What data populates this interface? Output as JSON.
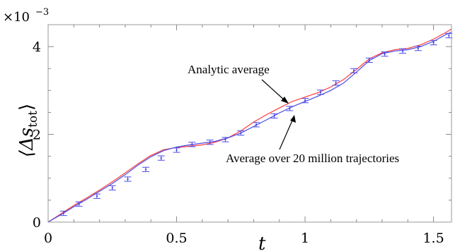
{
  "chart_data": {
    "type": "line",
    "xlabel": "t",
    "ylabel": "⟨Δs_tot⟩",
    "ylabel_main": "⟨Δs",
    "ylabel_sub": "tot",
    "ylabel_close": "⟩",
    "y_scale_multiplier": "×10",
    "y_scale_exponent": "−3",
    "xlim": [
      0,
      1.57
    ],
    "ylim": [
      0,
      4.5
    ],
    "x_ticks": [
      0,
      0.5,
      1,
      1.5
    ],
    "x_tick_labels": [
      "0",
      "0.5",
      "1",
      "1.5"
    ],
    "y_ticks": [
      0,
      2,
      4
    ],
    "y_tick_labels": [
      "0",
      "2",
      "4"
    ],
    "series": [
      {
        "name": "Analytic average",
        "color": "#ff3b3b",
        "x": [
          0,
          0.05,
          0.1,
          0.15,
          0.2,
          0.25,
          0.3,
          0.35,
          0.4,
          0.45,
          0.5,
          0.55,
          0.6,
          0.65,
          0.7,
          0.75,
          0.8,
          0.85,
          0.9,
          0.95,
          1.0,
          1.05,
          1.1,
          1.15,
          1.2,
          1.25,
          1.3,
          1.35,
          1.4,
          1.45,
          1.5,
          1.55,
          1.57
        ],
        "y": [
          0,
          0.19,
          0.38,
          0.55,
          0.73,
          0.92,
          1.12,
          1.33,
          1.52,
          1.65,
          1.7,
          1.73,
          1.76,
          1.82,
          1.92,
          2.08,
          2.28,
          2.45,
          2.6,
          2.75,
          2.85,
          2.95,
          3.08,
          3.25,
          3.48,
          3.72,
          3.86,
          3.93,
          3.96,
          4.04,
          4.17,
          4.33,
          4.4
        ]
      },
      {
        "name": "Average over 20 million trajectories",
        "color": "#4a4ae8",
        "x": [
          0,
          0.05,
          0.1,
          0.15,
          0.2,
          0.25,
          0.3,
          0.35,
          0.4,
          0.45,
          0.5,
          0.55,
          0.6,
          0.65,
          0.7,
          0.75,
          0.8,
          0.85,
          0.9,
          0.95,
          1.0,
          1.05,
          1.1,
          1.15,
          1.2,
          1.25,
          1.3,
          1.35,
          1.4,
          1.45,
          1.5,
          1.55,
          1.57
        ],
        "y": [
          0,
          0.17,
          0.35,
          0.52,
          0.7,
          0.88,
          1.08,
          1.3,
          1.49,
          1.63,
          1.71,
          1.76,
          1.8,
          1.84,
          1.92,
          2.03,
          2.18,
          2.33,
          2.49,
          2.63,
          2.75,
          2.87,
          3.0,
          3.17,
          3.42,
          3.68,
          3.84,
          3.9,
          3.93,
          4.0,
          4.12,
          4.28,
          4.33
        ]
      }
    ],
    "errorbars": {
      "x": [
        0.06,
        0.12,
        0.19,
        0.25,
        0.31,
        0.38,
        0.44,
        0.5,
        0.56,
        0.63,
        0.69,
        0.75,
        0.81,
        0.88,
        0.94,
        1.0,
        1.06,
        1.12,
        1.19,
        1.25,
        1.31,
        1.38,
        1.44,
        1.5,
        1.56
      ],
      "y": [
        0.2,
        0.41,
        0.59,
        0.78,
        0.98,
        1.2,
        1.46,
        1.64,
        1.77,
        1.82,
        1.88,
        2.03,
        2.22,
        2.42,
        2.59,
        2.77,
        2.96,
        3.17,
        3.45,
        3.69,
        3.83,
        3.9,
        3.96,
        4.09,
        4.25
      ],
      "err": 0.05
    },
    "annotations": [
      {
        "text": "Analytic average",
        "target_series": "Analytic average",
        "target_x": 0.92
      },
      {
        "text": "Average over 20 million trajectories",
        "target_series": "Average over 20 million trajectories",
        "target_x": 0.93
      }
    ]
  }
}
